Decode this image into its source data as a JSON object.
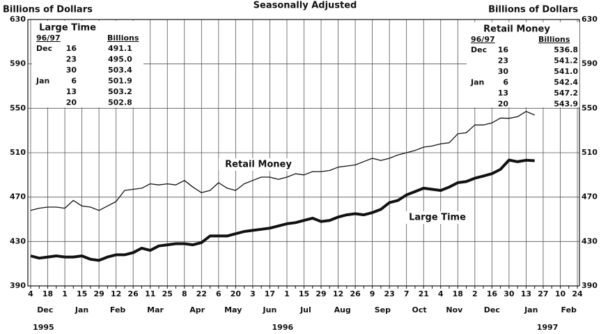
{
  "chart_data": {
    "type": "line",
    "title": "Seasonally Adjusted",
    "y_label_left": "Billions of Dollars",
    "y_label_right": "Billions of Dollars",
    "categories": [
      "4",
      null,
      "18",
      null,
      "1",
      null,
      "15",
      null,
      "29",
      null,
      "12",
      null,
      "26",
      null,
      "11",
      null,
      "25",
      null,
      "8",
      null,
      "22",
      null,
      "6",
      null,
      "20",
      null,
      "3",
      null,
      "17",
      null,
      "1",
      null,
      "15",
      null,
      "29",
      null,
      "12",
      null,
      "26",
      null,
      "9",
      null,
      "23",
      null,
      "7",
      null,
      "21",
      null,
      "4",
      null,
      "18",
      null,
      "2",
      null,
      "16",
      null,
      "30",
      null,
      "13",
      null,
      "27",
      null,
      "10",
      null,
      "24"
    ],
    "month_labels": [
      "Dec",
      "Jan",
      "Feb",
      "Mar",
      "Apr",
      "May",
      "Jun",
      "Jul",
      "Aug",
      "Sep",
      "Oct",
      "Nov",
      "Dec",
      "Jan",
      "Feb"
    ],
    "year_labels": [
      "1995",
      "1996",
      "1997"
    ],
    "series": [
      {
        "name": "Retail Money",
        "color": "#111",
        "width": 1.3,
        "values": [
          458,
          460,
          461,
          461,
          460,
          467,
          462,
          461,
          458,
          462,
          466,
          476,
          477,
          478,
          482,
          481,
          482,
          481,
          485,
          479,
          474,
          476,
          483,
          478,
          476,
          482,
          485,
          488,
          488,
          486,
          488,
          491,
          490,
          493,
          493,
          494,
          497,
          498,
          499,
          502,
          505,
          503,
          505,
          508,
          510,
          512,
          515,
          516,
          518,
          519,
          527,
          528,
          535,
          535,
          536.8,
          541.2,
          541.0,
          542.4,
          547.2,
          543.9,
          null,
          null,
          null,
          null,
          null
        ]
      },
      {
        "name": "Large Time",
        "color": "#111",
        "width": 4,
        "values": [
          417,
          415,
          416,
          417,
          416,
          416,
          417,
          414,
          413,
          416,
          418,
          418,
          420,
          424,
          422,
          426,
          427,
          428,
          428,
          427,
          429,
          435,
          435,
          435,
          437,
          439,
          440,
          441,
          442,
          444,
          446,
          447,
          449,
          451,
          448,
          449,
          452,
          454,
          455,
          454,
          456,
          459,
          465,
          467,
          472,
          475,
          478,
          477,
          476,
          479,
          483,
          484,
          487,
          489,
          491.1,
          495.0,
          503.4,
          501.9,
          503.2,
          502.8,
          null,
          null,
          null,
          null,
          null
        ]
      }
    ],
    "ylim": [
      390,
      630
    ],
    "yticks": [
      390,
      430,
      470,
      510,
      550,
      590,
      630
    ],
    "grid": true,
    "tables": [
      {
        "title": "Large Time",
        "headers": [
          "96/97",
          "Billions"
        ],
        "rows": [
          {
            "month": "Dec",
            "day": "16",
            "value": "491.1"
          },
          {
            "day": "23",
            "value": "495.0"
          },
          {
            "day": "30",
            "value": "503.4"
          },
          {
            "month": "Jan",
            "day": "6",
            "value": "501.9"
          },
          {
            "day": "13",
            "value": "503.2"
          },
          {
            "day": "20",
            "value": "502.8"
          }
        ]
      },
      {
        "title": "Retail Money",
        "headers": [
          "96/97",
          "Billions"
        ],
        "rows": [
          {
            "month": "Dec",
            "day": "16",
            "value": "536.8"
          },
          {
            "day": "23",
            "value": "541.2"
          },
          {
            "day": "30",
            "value": "541.0"
          },
          {
            "month": "Jan",
            "day": "6",
            "value": "542.4"
          },
          {
            "day": "13",
            "value": "547.2"
          },
          {
            "day": "20",
            "value": "543.9"
          }
        ]
      }
    ]
  }
}
